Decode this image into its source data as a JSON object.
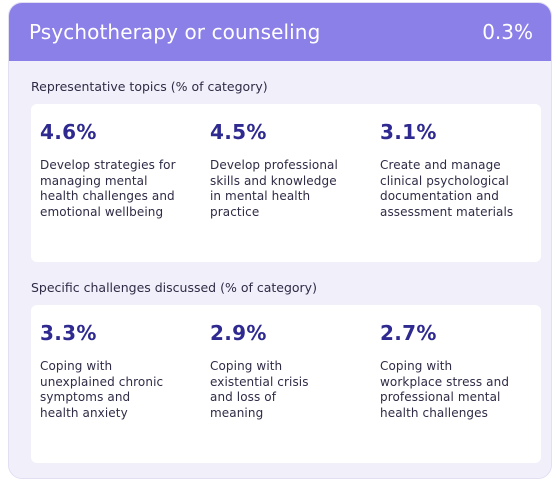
{
  "header": {
    "title": "Psychotherapy or counseling",
    "share": "0.3%"
  },
  "topics": {
    "label": "Representative topics (% of category)",
    "items": [
      {
        "pct": "4.6%",
        "desc": "Develop strategies for\nmanaging mental\nhealth challenges and\nemotional wellbeing"
      },
      {
        "pct": "4.5%",
        "desc": "Develop professional\nskills and knowledge\nin mental health\npractice"
      },
      {
        "pct": "3.1%",
        "desc": "Create and manage\nclinical psychological\ndocumentation and\nassessment materials"
      }
    ]
  },
  "challenges": {
    "label": "Specific challenges discussed (% of category)",
    "items": [
      {
        "pct": "3.3%",
        "desc": "Coping with\nunexplained chronic\nsymptoms and\nhealth anxiety"
      },
      {
        "pct": "2.9%",
        "desc": "Coping with\nexistential crisis\nand loss of\nmeaning"
      },
      {
        "pct": "2.7%",
        "desc": "Coping with\nworkplace stress and\nprofessional mental\nhealth challenges"
      }
    ]
  },
  "colors": {
    "header_bg": "#8b7fe8",
    "card_bg": "#f1f0fa",
    "accent_text": "#2f2a8f"
  }
}
